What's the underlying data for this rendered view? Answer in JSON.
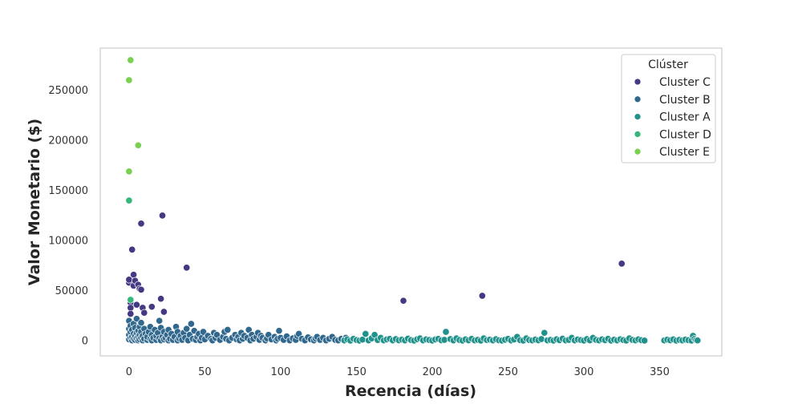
{
  "chart_data": {
    "type": "scatter",
    "title": "",
    "xlabel": "Recencia (días)",
    "ylabel": "Valor Monetario ($)",
    "xlim": [
      -19,
      391
    ],
    "ylim": [
      -15000,
      292000
    ],
    "xticks": [
      0,
      50,
      100,
      150,
      200,
      250,
      300,
      350
    ],
    "yticks": [
      0,
      50000,
      100000,
      150000,
      200000,
      250000
    ],
    "grid": false,
    "legend": {
      "title": "Clúster",
      "placement": "top-right"
    },
    "series": [
      {
        "name": "Cluster C",
        "color": "#443983",
        "points": [
          [
            0,
            58000
          ],
          [
            0,
            61000
          ],
          [
            1,
            38000
          ],
          [
            1,
            33000
          ],
          [
            1,
            27000
          ],
          [
            2,
            91000
          ],
          [
            3,
            66000
          ],
          [
            3,
            55000
          ],
          [
            4,
            60000
          ],
          [
            5,
            36000
          ],
          [
            6,
            56000
          ],
          [
            7,
            52000
          ],
          [
            8,
            51000
          ],
          [
            8,
            117000
          ],
          [
            9,
            33000
          ],
          [
            10,
            28000
          ],
          [
            15,
            34000
          ],
          [
            21,
            42000
          ],
          [
            22,
            125000
          ],
          [
            23,
            29000
          ],
          [
            38,
            73000
          ],
          [
            181,
            40000
          ],
          [
            233,
            45000
          ],
          [
            325,
            77000
          ]
        ]
      },
      {
        "name": "Cluster B",
        "color": "#31688e",
        "points": [
          [
            0,
            1500
          ],
          [
            0,
            6000
          ],
          [
            0,
            12000
          ],
          [
            0,
            20000
          ],
          [
            1,
            3000
          ],
          [
            1,
            9000
          ],
          [
            1,
            15000
          ],
          [
            2,
            500
          ],
          [
            2,
            4000
          ],
          [
            2,
            11000
          ],
          [
            3,
            2000
          ],
          [
            3,
            7000
          ],
          [
            3,
            17000
          ],
          [
            4,
            1000
          ],
          [
            4,
            5000
          ],
          [
            4,
            13000
          ],
          [
            5,
            2500
          ],
          [
            5,
            8000
          ],
          [
            5,
            22000
          ],
          [
            6,
            500
          ],
          [
            6,
            4000
          ],
          [
            6,
            10000
          ],
          [
            7,
            1500
          ],
          [
            7,
            6000
          ],
          [
            7,
            14000
          ],
          [
            8,
            3000
          ],
          [
            8,
            9000
          ],
          [
            8,
            18000
          ],
          [
            9,
            500
          ],
          [
            9,
            5000
          ],
          [
            10,
            2000
          ],
          [
            10,
            12000
          ],
          [
            11,
            7000
          ],
          [
            12,
            1000
          ],
          [
            12,
            4000
          ],
          [
            13,
            9000
          ],
          [
            14,
            2000
          ],
          [
            14,
            14000
          ],
          [
            15,
            500
          ],
          [
            15,
            6000
          ],
          [
            16,
            3000
          ],
          [
            17,
            11000
          ],
          [
            18,
            1000
          ],
          [
            18,
            5000
          ],
          [
            19,
            8000
          ],
          [
            20,
            2500
          ],
          [
            20,
            20000
          ],
          [
            21,
            500
          ],
          [
            21,
            13000
          ],
          [
            22,
            4000
          ],
          [
            23,
            1500
          ],
          [
            23,
            9000
          ],
          [
            24,
            3000
          ],
          [
            25,
            6000
          ],
          [
            26,
            500
          ],
          [
            26,
            11000
          ],
          [
            27,
            2000
          ],
          [
            28,
            7000
          ],
          [
            29,
            1000
          ],
          [
            30,
            4000
          ],
          [
            31,
            14000
          ],
          [
            32,
            500
          ],
          [
            32,
            9000
          ],
          [
            33,
            2500
          ],
          [
            34,
            5000
          ],
          [
            35,
            1000
          ],
          [
            36,
            8000
          ],
          [
            37,
            3000
          ],
          [
            38,
            12000
          ],
          [
            39,
            500
          ],
          [
            40,
            6000
          ],
          [
            41,
            17000
          ],
          [
            42,
            2000
          ],
          [
            43,
            10000
          ],
          [
            44,
            1000
          ],
          [
            45,
            4000
          ],
          [
            46,
            7000
          ],
          [
            47,
            500
          ],
          [
            48,
            3000
          ],
          [
            49,
            9000
          ],
          [
            50,
            1500
          ],
          [
            52,
            5000
          ],
          [
            54,
            2000
          ],
          [
            55,
            500
          ],
          [
            56,
            8000
          ],
          [
            57,
            3000
          ],
          [
            58,
            6000
          ],
          [
            60,
            1000
          ],
          [
            62,
            4000
          ],
          [
            63,
            9000
          ],
          [
            64,
            2000
          ],
          [
            65,
            11000
          ],
          [
            66,
            500
          ],
          [
            68,
            3000
          ],
          [
            70,
            6000
          ],
          [
            71,
            1500
          ],
          [
            72,
            4000
          ],
          [
            73,
            500
          ],
          [
            74,
            8000
          ],
          [
            75,
            2000
          ],
          [
            76,
            5000
          ],
          [
            78,
            3000
          ],
          [
            79,
            11000
          ],
          [
            80,
            500
          ],
          [
            81,
            6000
          ],
          [
            82,
            2000
          ],
          [
            84,
            4000
          ],
          [
            85,
            8000
          ],
          [
            86,
            1000
          ],
          [
            87,
            5000
          ],
          [
            88,
            3000
          ],
          [
            90,
            500
          ],
          [
            91,
            2500
          ],
          [
            92,
            6000
          ],
          [
            94,
            1500
          ],
          [
            96,
            4000
          ],
          [
            97,
            500
          ],
          [
            98,
            2000
          ],
          [
            99,
            10000
          ],
          [
            100,
            3000
          ],
          [
            102,
            1000
          ],
          [
            104,
            4500
          ],
          [
            106,
            500
          ],
          [
            108,
            2500
          ],
          [
            110,
            1000
          ],
          [
            111,
            5000
          ],
          [
            112,
            7000
          ],
          [
            114,
            2000
          ],
          [
            116,
            500
          ],
          [
            118,
            3500
          ],
          [
            120,
            1500
          ],
          [
            122,
            500
          ],
          [
            123,
            2500
          ],
          [
            124,
            4000
          ],
          [
            126,
            1000
          ],
          [
            128,
            3000
          ],
          [
            130,
            500
          ],
          [
            132,
            2000
          ],
          [
            134,
            4000
          ],
          [
            136,
            1000
          ],
          [
            138,
            500
          ],
          [
            140,
            2000
          ],
          [
            142,
            1000
          ],
          [
            143,
            3000
          ]
        ]
      },
      {
        "name": "Cluster A",
        "color": "#21918c",
        "points": [
          [
            142,
            500
          ],
          [
            144,
            1500
          ],
          [
            146,
            300
          ],
          [
            148,
            2000
          ],
          [
            150,
            800
          ],
          [
            152,
            300
          ],
          [
            154,
            1200
          ],
          [
            156,
            7000
          ],
          [
            158,
            500
          ],
          [
            160,
            2500
          ],
          [
            162,
            6000
          ],
          [
            164,
            800
          ],
          [
            166,
            3000
          ],
          [
            168,
            400
          ],
          [
            170,
            1500
          ],
          [
            172,
            2000
          ],
          [
            174,
            500
          ],
          [
            176,
            1800
          ],
          [
            178,
            600
          ],
          [
            180,
            1200
          ],
          [
            182,
            400
          ],
          [
            184,
            2200
          ],
          [
            186,
            800
          ],
          [
            188,
            300
          ],
          [
            190,
            1600
          ],
          [
            192,
            2500
          ],
          [
            194,
            500
          ],
          [
            196,
            1500
          ],
          [
            198,
            900
          ],
          [
            200,
            300
          ],
          [
            202,
            1400
          ],
          [
            204,
            2000
          ],
          [
            206,
            600
          ],
          [
            208,
            1000
          ],
          [
            209,
            9000
          ],
          [
            212,
            1800
          ],
          [
            214,
            400
          ],
          [
            216,
            2500
          ],
          [
            218,
            900
          ],
          [
            220,
            300
          ],
          [
            222,
            1500
          ],
          [
            224,
            600
          ],
          [
            226,
            2000
          ],
          [
            228,
            400
          ],
          [
            230,
            1000
          ],
          [
            232,
            300
          ],
          [
            234,
            2500
          ],
          [
            236,
            800
          ],
          [
            238,
            1200
          ],
          [
            240,
            400
          ],
          [
            242,
            1700
          ],
          [
            244,
            600
          ],
          [
            246,
            300
          ],
          [
            248,
            1100
          ],
          [
            250,
            2000
          ],
          [
            252,
            500
          ],
          [
            254,
            1400
          ],
          [
            256,
            4000
          ],
          [
            258,
            700
          ],
          [
            260,
            300
          ],
          [
            262,
            2500
          ],
          [
            264,
            900
          ],
          [
            266,
            400
          ],
          [
            268,
            1300
          ],
          [
            270,
            600
          ],
          [
            272,
            1800
          ],
          [
            274,
            8000
          ],
          [
            276,
            500
          ],
          [
            278,
            1000
          ],
          [
            280,
            300
          ],
          [
            282,
            1600
          ],
          [
            284,
            700
          ],
          [
            286,
            2200
          ],
          [
            288,
            400
          ],
          [
            290,
            1000
          ],
          [
            292,
            3000
          ],
          [
            294,
            500
          ],
          [
            296,
            1400
          ],
          [
            298,
            800
          ],
          [
            300,
            300
          ],
          [
            302,
            1800
          ],
          [
            304,
            600
          ],
          [
            306,
            3000
          ],
          [
            308,
            1000
          ],
          [
            310,
            400
          ],
          [
            312,
            1500
          ],
          [
            314,
            700
          ],
          [
            316,
            2000
          ],
          [
            318,
            300
          ],
          [
            320,
            1200
          ],
          [
            322,
            500
          ],
          [
            324,
            1600
          ],
          [
            326,
            800
          ],
          [
            328,
            300
          ],
          [
            330,
            2500
          ],
          [
            332,
            1000
          ],
          [
            334,
            400
          ],
          [
            336,
            1500
          ],
          [
            338,
            700
          ],
          [
            340,
            300
          ],
          [
            353,
            400
          ],
          [
            355,
            1200
          ],
          [
            357,
            600
          ],
          [
            359,
            1500
          ],
          [
            361,
            300
          ],
          [
            363,
            1000
          ],
          [
            365,
            500
          ],
          [
            367,
            1300
          ],
          [
            369,
            700
          ],
          [
            371,
            300
          ],
          [
            372,
            5000
          ],
          [
            373,
            2000
          ],
          [
            374,
            800
          ],
          [
            375,
            400
          ]
        ]
      },
      {
        "name": "Cluster D",
        "color": "#35b779",
        "points": [
          [
            0,
            140000
          ],
          [
            1,
            41000
          ]
        ]
      },
      {
        "name": "Cluster E",
        "color": "#7ad151",
        "points": [
          [
            0,
            169000
          ],
          [
            0,
            260000
          ],
          [
            1,
            280000
          ],
          [
            6,
            195000
          ]
        ]
      }
    ]
  }
}
